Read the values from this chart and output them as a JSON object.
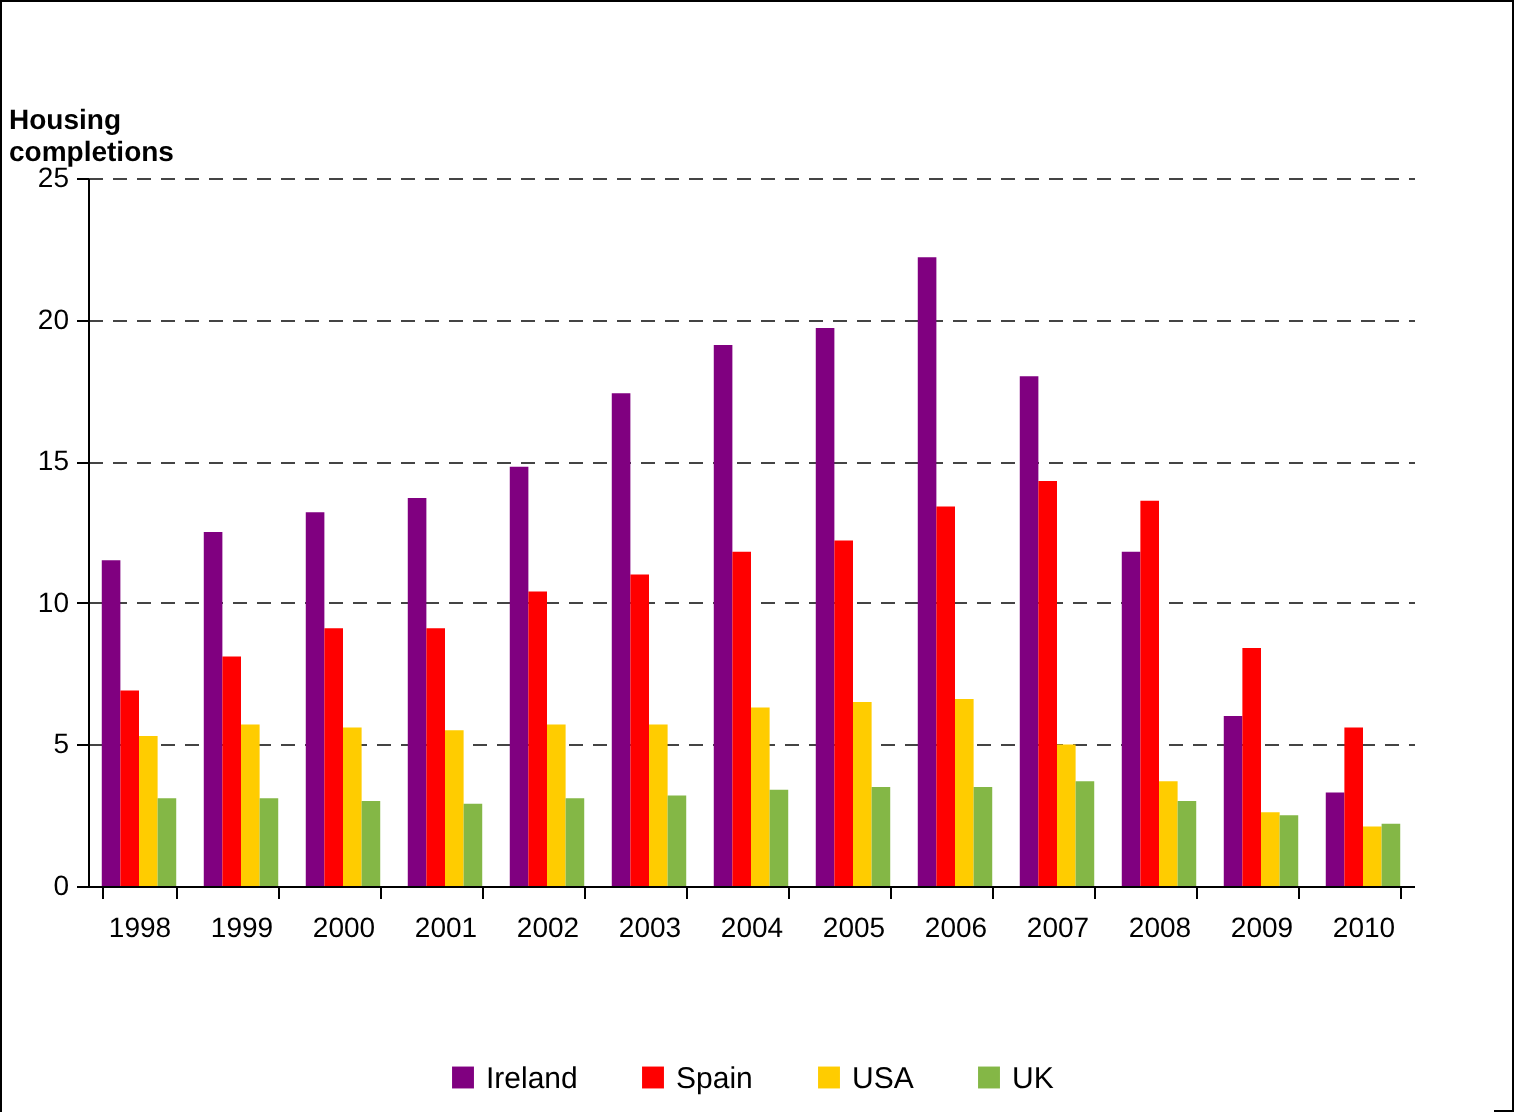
{
  "chart_data": {
    "type": "bar",
    "ylabel": "Housing completions",
    "categories": [
      "1998",
      "1999",
      "2000",
      "2001",
      "2002",
      "2003",
      "2004",
      "2005",
      "2006",
      "2007",
      "2008",
      "2009",
      "2010"
    ],
    "series": [
      {
        "name": "Ireland",
        "color": "#800080",
        "values": [
          11.5,
          12.5,
          13.2,
          13.7,
          14.8,
          17.4,
          19.1,
          19.7,
          22.2,
          18.0,
          11.8,
          6.0,
          3.3
        ]
      },
      {
        "name": "Spain",
        "color": "#ff0000",
        "values": [
          6.9,
          8.1,
          9.1,
          9.1,
          10.4,
          11.0,
          11.8,
          12.2,
          13.4,
          14.3,
          13.6,
          8.4,
          5.6
        ]
      },
      {
        "name": "USA",
        "color": "#ffcc00",
        "values": [
          5.3,
          5.7,
          5.6,
          5.5,
          5.7,
          5.7,
          6.3,
          6.5,
          6.6,
          5.0,
          3.7,
          2.6,
          2.1
        ]
      },
      {
        "name": "UK",
        "color": "#84b746",
        "values": [
          3.1,
          3.1,
          3.0,
          2.9,
          3.1,
          3.2,
          3.4,
          3.5,
          3.5,
          3.7,
          3.0,
          2.5,
          2.2
        ]
      }
    ],
    "ylim": [
      0,
      25
    ],
    "yticks": [
      0,
      5,
      10,
      15,
      20,
      25
    ],
    "grid": "y",
    "legend": "bottom"
  }
}
